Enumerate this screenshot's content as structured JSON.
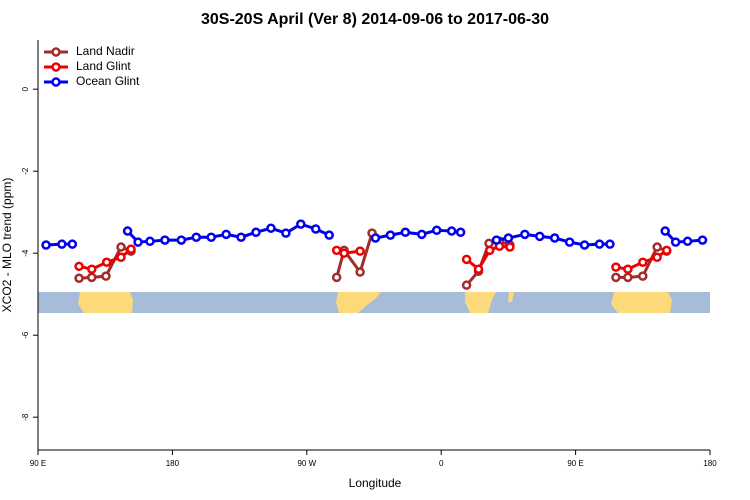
{
  "chart_data": {
    "type": "line",
    "title": "30S-20S April (Ver 8)   2014-09-06 to 2017-06-30",
    "x_label": "Longitude",
    "y_label": "XCO2 - MLO trend (ppm)",
    "xlim": [
      90,
      540
    ],
    "ylim": [
      -8.8,
      1.2
    ],
    "xticks": [
      {
        "value": 90,
        "label": "90 E"
      },
      {
        "value": 180,
        "label": "180"
      },
      {
        "value": 270,
        "label": "90 W"
      },
      {
        "value": 360,
        "label": "0"
      },
      {
        "value": 450,
        "label": "90 E"
      },
      {
        "value": 540,
        "label": "180"
      }
    ],
    "yticks": [
      0,
      -2,
      -4,
      -6,
      -8
    ],
    "legend": "top-left",
    "series": [
      {
        "name": "Land Nadir",
        "color": "#a52a2a",
        "x": [
          117.5,
          126,
          135.5,
          145.6,
          152.3,
          null,
          290,
          295,
          305.7,
          313.7,
          null,
          377,
          385,
          392,
          399,
          406,
          null,
          477,
          485,
          495,
          504.6,
          511
        ],
        "values": [
          -4.61,
          -4.59,
          -4.56,
          -3.85,
          -3.95,
          null,
          -4.59,
          -3.93,
          -4.46,
          -3.51,
          null,
          -4.78,
          -4.44,
          -3.76,
          -3.71,
          -3.8,
          null,
          -4.59,
          -4.59,
          -4.56,
          -3.85,
          -3.95
        ]
      },
      {
        "name": "Land Glint",
        "color": "#ee0000",
        "x": [
          117.5,
          126,
          136,
          145.6,
          152.3,
          null,
          290,
          295,
          305.7,
          null,
          377,
          385,
          392.5,
          399,
          406,
          null,
          477,
          485,
          495,
          504.6,
          511
        ],
        "values": [
          -4.32,
          -4.39,
          -4.22,
          -4.1,
          -3.9,
          null,
          -3.93,
          -4.0,
          -3.95,
          null,
          -4.15,
          -4.39,
          -3.93,
          -3.83,
          -3.85,
          null,
          -4.34,
          -4.39,
          -4.22,
          -4.1,
          -3.93
        ]
      },
      {
        "name": "Ocean Glint",
        "color": "#0000ee",
        "x": [
          95.4,
          106,
          113,
          null,
          150,
          157,
          165,
          175,
          186,
          196,
          206,
          216,
          226,
          236,
          246,
          256,
          266,
          276,
          285,
          null,
          316,
          326,
          336,
          347,
          357,
          367,
          373,
          null,
          397,
          405,
          416,
          426,
          436,
          446,
          456,
          466,
          473,
          null,
          510,
          517,
          525,
          535
        ],
        "values": [
          -3.8,
          -3.78,
          -3.78,
          null,
          -3.46,
          -3.73,
          -3.71,
          -3.68,
          -3.68,
          -3.61,
          -3.61,
          -3.54,
          -3.61,
          -3.49,
          -3.39,
          -3.51,
          -3.29,
          -3.41,
          -3.56,
          null,
          -3.63,
          -3.56,
          -3.49,
          -3.54,
          -3.44,
          -3.46,
          -3.49,
          null,
          -3.68,
          -3.63,
          -3.54,
          -3.59,
          -3.63,
          -3.73,
          -3.8,
          -3.78,
          -3.78,
          null,
          -3.46,
          -3.73,
          -3.71,
          -3.68
        ]
      }
    ]
  }
}
